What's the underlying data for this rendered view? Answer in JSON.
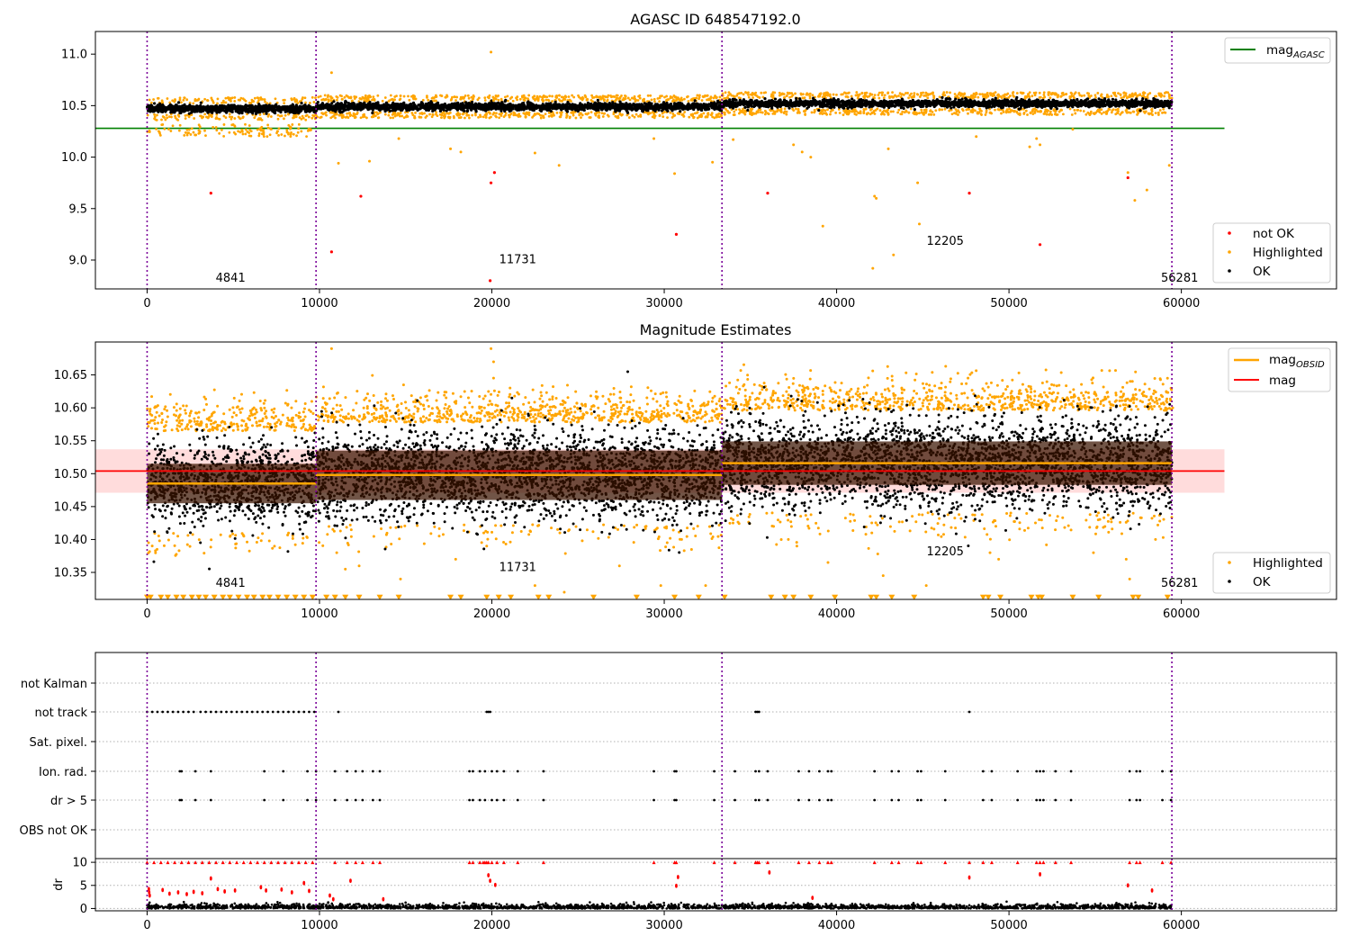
{
  "chart_data": [
    {
      "type": "scatter",
      "title": "AGASC ID 648547192.0",
      "xlim": [
        -3000,
        69000
      ],
      "ylim": [
        8.72,
        11.22
      ],
      "xticks": [
        0,
        10000,
        20000,
        30000,
        40000,
        50000,
        60000
      ],
      "yticks": [
        9.0,
        9.5,
        10.0,
        10.5,
        11.0
      ],
      "ytick_labels": [
        "9.0",
        "9.5",
        "10.0",
        "10.5",
        "11.0"
      ],
      "vlines": [
        0,
        9800,
        33350,
        59450
      ],
      "annotations": [
        {
          "text": "4841",
          "x": 4841,
          "y": 8.79
        },
        {
          "text": "11731",
          "x": 21500,
          "y": 8.97
        },
        {
          "text": "12205",
          "x": 46300,
          "y": 9.15
        },
        {
          "text": "56281",
          "x": 59900,
          "y": 8.79
        }
      ],
      "agasc_mag": 10.28,
      "agasc_line_x": [
        -3000,
        62500
      ],
      "ok_segments": [
        {
          "x": [
            0,
            9800
          ],
          "center": 10.47
        },
        {
          "x": [
            9800,
            33350
          ],
          "center": 10.49
        },
        {
          "x": [
            33350,
            59450
          ],
          "center": 10.52
        }
      ],
      "legend_top": [
        {
          "name": "mag$_{AGASC}$",
          "label": "mag",
          "sub": "AGASC",
          "color": "#008000"
        }
      ],
      "legend_bottom": [
        {
          "name": "not OK",
          "color": "#ff0000"
        },
        {
          "name": "Highlighted",
          "color": "#ffa500"
        },
        {
          "name": "OK",
          "color": "#000000"
        }
      ],
      "not_ok_points": [
        [
          3700,
          9.65
        ],
        [
          10700,
          9.08
        ],
        [
          12400,
          9.62
        ],
        [
          19900,
          8.8
        ],
        [
          19950,
          9.75
        ],
        [
          20150,
          9.85
        ],
        [
          30700,
          9.25
        ],
        [
          36000,
          9.65
        ],
        [
          47700,
          9.65
        ],
        [
          51800,
          9.15
        ],
        [
          56900,
          9.8
        ]
      ],
      "highlight_outliers": [
        [
          10700,
          10.82
        ],
        [
          11100,
          9.94
        ],
        [
          12900,
          9.96
        ],
        [
          14600,
          10.18
        ],
        [
          17600,
          10.08
        ],
        [
          18200,
          10.05
        ],
        [
          19950,
          11.02
        ],
        [
          20100,
          10.55
        ],
        [
          22500,
          10.04
        ],
        [
          23900,
          9.92
        ],
        [
          29400,
          10.18
        ],
        [
          30600,
          9.84
        ],
        [
          32800,
          9.95
        ],
        [
          34000,
          10.17
        ],
        [
          37500,
          10.12
        ],
        [
          38000,
          10.05
        ],
        [
          38500,
          10.0
        ],
        [
          39200,
          9.33
        ],
        [
          42100,
          8.92
        ],
        [
          42200,
          9.62
        ],
        [
          42300,
          9.6
        ],
        [
          43000,
          10.08
        ],
        [
          43300,
          9.05
        ],
        [
          44700,
          9.75
        ],
        [
          44800,
          9.35
        ],
        [
          48100,
          10.2
        ],
        [
          51200,
          10.1
        ],
        [
          51600,
          10.18
        ],
        [
          51800,
          10.12
        ],
        [
          53700,
          10.27
        ],
        [
          56900,
          9.85
        ],
        [
          57300,
          9.58
        ],
        [
          58000,
          9.68
        ],
        [
          59300,
          9.92
        ]
      ]
    },
    {
      "type": "scatter",
      "title": "Magnitude Estimates",
      "xlim": [
        -3000,
        69000
      ],
      "ylim": [
        10.309,
        10.7
      ],
      "xticks": [
        0,
        10000,
        20000,
        30000,
        40000,
        50000,
        60000
      ],
      "yticks": [
        10.35,
        10.4,
        10.45,
        10.5,
        10.55,
        10.6,
        10.65
      ],
      "ytick_labels": [
        "10.35",
        "10.40",
        "10.45",
        "10.50",
        "10.55",
        "10.60",
        "10.65"
      ],
      "vlines": [
        0,
        9800,
        33350,
        59450
      ],
      "annotations": [
        {
          "text": "4841",
          "x": 4841,
          "y": 10.328
        },
        {
          "text": "11731",
          "x": 21500,
          "y": 10.352
        },
        {
          "text": "12205",
          "x": 46300,
          "y": 10.376
        },
        {
          "text": "56281",
          "x": 59900,
          "y": 10.328
        }
      ],
      "mag": 10.504,
      "mag_band": [
        10.471,
        10.537
      ],
      "mag_line_x": [
        -3000,
        62500
      ],
      "obsid_segments": [
        {
          "x": [
            0,
            9800
          ],
          "mag": 10.485,
          "band": [
            10.455,
            10.515
          ]
        },
        {
          "x": [
            9800,
            33350
          ],
          "mag": 10.498,
          "band": [
            10.46,
            10.535
          ]
        },
        {
          "x": [
            33350,
            59450
          ],
          "mag": 10.516,
          "band": [
            10.483,
            10.549
          ]
        }
      ],
      "legend_top": [
        {
          "name": "mag$_{OBSID}$",
          "label": "mag",
          "sub": "OBSID",
          "color": "#ffa500"
        },
        {
          "name": "mag",
          "color": "#ff0000"
        }
      ],
      "legend_bottom": [
        {
          "name": "Highlighted",
          "color": "#ffa500"
        },
        {
          "name": "OK",
          "color": "#000000"
        }
      ],
      "low_markers_x": [
        0,
        200,
        800,
        1200,
        1700,
        2100,
        2600,
        3000,
        3400,
        3900,
        4400,
        4800,
        5300,
        5800,
        6200,
        6700,
        7100,
        7600,
        8100,
        8600,
        9100,
        9600,
        10400,
        10900,
        11500,
        12300,
        13500,
        14600,
        17600,
        18200,
        19700,
        20400,
        21100,
        22700,
        23300,
        25900,
        28400,
        30600,
        32000,
        33500,
        36200,
        37000,
        37500,
        38500,
        39900,
        42000,
        42300,
        43200,
        44500,
        48500,
        48800,
        49500,
        51300,
        51700,
        51900,
        53700,
        55200,
        57200,
        57500,
        59200
      ],
      "highlight_outliers": [
        [
          10700,
          10.69
        ],
        [
          19950,
          10.69
        ],
        [
          20100,
          10.67
        ],
        [
          11000,
          10.38
        ],
        [
          11500,
          10.355
        ],
        [
          12300,
          10.36
        ],
        [
          14700,
          10.34
        ],
        [
          17900,
          10.37
        ],
        [
          19700,
          10.39
        ],
        [
          22500,
          10.33
        ],
        [
          24200,
          10.32
        ],
        [
          27400,
          10.36
        ],
        [
          29800,
          10.33
        ],
        [
          32400,
          10.33
        ],
        [
          34000,
          10.43
        ],
        [
          37200,
          10.4
        ],
        [
          39500,
          10.365
        ],
        [
          42700,
          10.345
        ],
        [
          45200,
          10.33
        ],
        [
          48900,
          10.38
        ],
        [
          49400,
          10.37
        ],
        [
          54900,
          10.38
        ],
        [
          56800,
          10.37
        ],
        [
          58500,
          10.4
        ],
        [
          57000,
          10.34
        ],
        [
          59500,
          10.6
        ]
      ]
    },
    {
      "type": "scatter",
      "title": "",
      "xlim": [
        -3000,
        69000
      ],
      "xticks": [
        0,
        10000,
        20000,
        30000,
        40000,
        50000,
        60000
      ],
      "vlines": [
        0,
        9800,
        33350,
        59450
      ],
      "flag_rows": [
        "not Kalman",
        "not track",
        "Sat. pixel.",
        "Ion. rad.",
        "dr > 5",
        "OBS not OK"
      ],
      "flag_points": {
        "not Kalman": [],
        "not track": [
          0,
          300,
          600,
          900,
          1200,
          1500,
          1800,
          2100,
          2400,
          2700,
          3100,
          3400,
          3700,
          4000,
          4300,
          4600,
          4900,
          5200,
          5500,
          5800,
          6100,
          6400,
          6700,
          7000,
          7300,
          7600,
          7900,
          8200,
          8500,
          8800,
          9100,
          9400,
          9700,
          11100,
          19700,
          19800,
          19900,
          35300,
          35400,
          35500,
          47700
        ],
        "Sat. pixel.": [],
        "Ion. rad.": [
          1900,
          2000,
          2800,
          3700,
          6800,
          7900,
          9300,
          9800,
          10900,
          11600,
          12100,
          12500,
          13100,
          13500,
          18700,
          18900,
          19300,
          19600,
          20000,
          20300,
          20700,
          21500,
          23000,
          29400,
          30600,
          30700,
          32900,
          34100,
          35300,
          35500,
          36000,
          37800,
          38400,
          39000,
          39500,
          39700,
          42200,
          43200,
          43600,
          44700,
          44900,
          46300,
          48500,
          49000,
          50500,
          51600,
          51800,
          52000,
          52700,
          53600,
          57000,
          57400,
          57600,
          58900,
          59400
        ],
        "dr > 5": [
          1900,
          2000,
          2800,
          3700,
          6800,
          7900,
          9300,
          9800,
          10900,
          11600,
          12100,
          12500,
          13100,
          13500,
          18700,
          18900,
          19300,
          19600,
          20000,
          20300,
          20700,
          21500,
          23000,
          29400,
          30600,
          30700,
          32900,
          34100,
          35300,
          35500,
          36000,
          37800,
          38400,
          39000,
          39500,
          39700,
          42200,
          43200,
          43600,
          44700,
          44900,
          46300,
          48500,
          49000,
          50500,
          51600,
          51800,
          52000,
          52700,
          53600,
          57000,
          57400,
          57600,
          58900,
          59400
        ],
        "OBS not OK": []
      },
      "dr_ylabel": "dr",
      "dr_ylim": [
        -0.5,
        10.8
      ],
      "dr_yticks": [
        0,
        5,
        10
      ],
      "dr_ytick_labels": [
        "0",
        "5",
        "10"
      ],
      "dr_high_points_x": [
        0,
        400,
        800,
        1200,
        1600,
        2000,
        2400,
        2800,
        3200,
        3600,
        4000,
        4400,
        4800,
        5200,
        5600,
        6000,
        6400,
        6800,
        7200,
        7600,
        8000,
        8400,
        8800,
        9200,
        9600,
        10900,
        11600,
        12100,
        12500,
        13100,
        13500,
        18700,
        18900,
        19300,
        19500,
        19600,
        19700,
        19800,
        20000,
        20300,
        20700,
        21500,
        23000,
        29400,
        30600,
        30700,
        32900,
        34100,
        35300,
        35400,
        35500,
        36000,
        37800,
        38400,
        39000,
        39500,
        39700,
        42200,
        43200,
        43600,
        44700,
        44900,
        46300,
        47700,
        48500,
        49000,
        50500,
        51600,
        51800,
        52000,
        52700,
        53600,
        57000,
        57400,
        57600,
        58900,
        59400
      ],
      "dr_mid_points": [
        [
          100,
          4.2
        ],
        [
          120,
          3.5
        ],
        [
          150,
          2.8
        ],
        [
          900,
          4.0
        ],
        [
          1300,
          3.2
        ],
        [
          1800,
          3.5
        ],
        [
          2300,
          3.1
        ],
        [
          2700,
          3.6
        ],
        [
          3200,
          3.3
        ],
        [
          3700,
          6.5
        ],
        [
          4100,
          4.2
        ],
        [
          4500,
          3.7
        ],
        [
          5100,
          3.9
        ],
        [
          6600,
          4.6
        ],
        [
          6900,
          3.9
        ],
        [
          7800,
          4.1
        ],
        [
          8400,
          3.5
        ],
        [
          9100,
          5.5
        ],
        [
          9400,
          3.8
        ],
        [
          10600,
          2.8
        ],
        [
          10800,
          2.0
        ],
        [
          11800,
          6.0
        ],
        [
          13700,
          2.0
        ],
        [
          19800,
          7.2
        ],
        [
          19900,
          6.0
        ],
        [
          20200,
          5.1
        ],
        [
          30800,
          6.8
        ],
        [
          30700,
          4.9
        ],
        [
          36100,
          7.8
        ],
        [
          38600,
          2.3
        ],
        [
          47700,
          6.7
        ],
        [
          51800,
          7.4
        ],
        [
          56900,
          5.0
        ],
        [
          58300,
          3.9
        ]
      ]
    }
  ]
}
